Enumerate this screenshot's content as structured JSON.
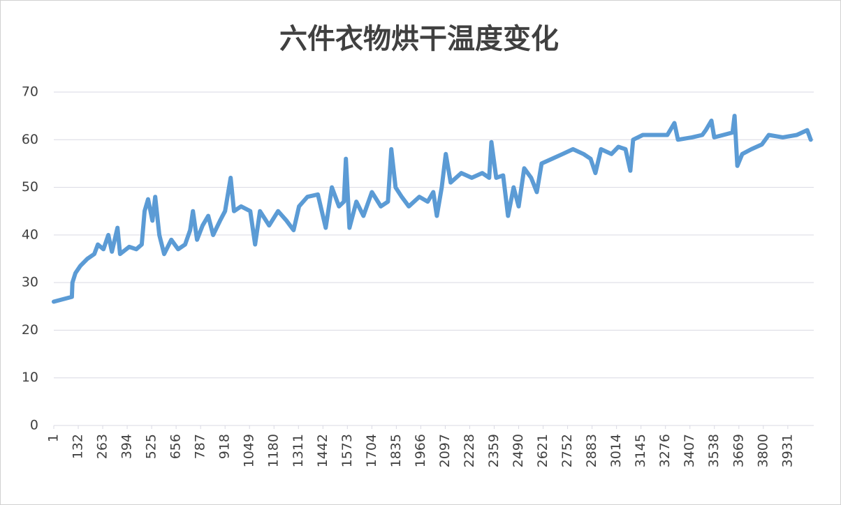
{
  "chart_data": {
    "type": "line",
    "title": "六件衣物烘干温度变化",
    "x": [
      1,
      50,
      98,
      101,
      117,
      143,
      181,
      218,
      237,
      267,
      293,
      312,
      342,
      356,
      405,
      443,
      472,
      487,
      506,
      529,
      544,
      566,
      592,
      630,
      667,
      704,
      731,
      746,
      768,
      798,
      828,
      854,
      891,
      918,
      948,
      966,
      1004,
      1053,
      1079,
      1105,
      1154,
      1202,
      1247,
      1285,
      1314,
      1359,
      1415,
      1457,
      1490,
      1528,
      1554,
      1565,
      1584,
      1621,
      1659,
      1704,
      1752,
      1790,
      1808,
      1831,
      1864,
      1902,
      1958,
      2003,
      2033,
      2052,
      2078,
      2100,
      2126,
      2183,
      2239,
      2295,
      2332,
      2344,
      2370,
      2407,
      2433,
      2463,
      2490,
      2520,
      2557,
      2587,
      2613,
      2669,
      2725,
      2781,
      2837,
      2875,
      2901,
      2931,
      2987,
      3024,
      3062,
      3088,
      3103,
      3155,
      3230,
      3286,
      3324,
      3343,
      3418,
      3473,
      3492,
      3522,
      3537,
      3586,
      3635,
      3646,
      3661,
      3687,
      3736,
      3792,
      3829,
      3904,
      3979,
      4035,
      4054
    ],
    "series": [
      {
        "color": "#5b9bd5",
        "values": [
          26,
          26.5,
          27,
          30,
          32,
          33.5,
          35,
          36,
          38,
          37,
          40,
          36.5,
          41.5,
          36,
          37.5,
          37,
          38,
          45,
          47.5,
          43,
          48,
          40,
          36,
          39,
          37,
          38,
          41,
          45,
          39,
          42,
          44,
          40,
          43,
          45,
          52,
          45,
          46,
          45,
          38,
          45,
          42,
          45,
          43,
          41,
          46,
          48,
          48.5,
          41.5,
          50,
          46,
          47,
          56,
          41.5,
          47,
          44,
          49,
          46,
          47,
          58,
          50,
          48,
          46,
          48,
          47,
          49,
          44,
          50,
          57,
          51,
          53,
          52,
          53,
          52,
          59.5,
          52,
          52.5,
          44,
          50,
          46,
          54,
          52,
          49,
          55,
          56,
          57,
          58,
          57,
          56,
          53,
          58,
          57,
          58.5,
          58,
          53.5,
          60,
          61,
          61,
          61,
          63.5,
          60,
          60.5,
          61,
          62,
          64,
          60.5,
          61,
          61.5,
          65,
          54.5,
          57,
          58,
          59,
          61,
          60.5,
          61,
          62,
          60
        ]
      }
    ],
    "xlim": [
      1,
      4070
    ],
    "xticks": [
      1,
      132,
      263,
      394,
      525,
      656,
      787,
      918,
      1049,
      1180,
      1311,
      1442,
      1573,
      1704,
      1835,
      1966,
      2097,
      2228,
      2359,
      2490,
      2621,
      2752,
      2883,
      3014,
      3145,
      3276,
      3407,
      3538,
      3669,
      3800,
      3931
    ],
    "ylim": [
      0,
      70
    ],
    "yticks": [
      0,
      10,
      20,
      30,
      40,
      50,
      60,
      70
    ],
    "grid": true
  }
}
